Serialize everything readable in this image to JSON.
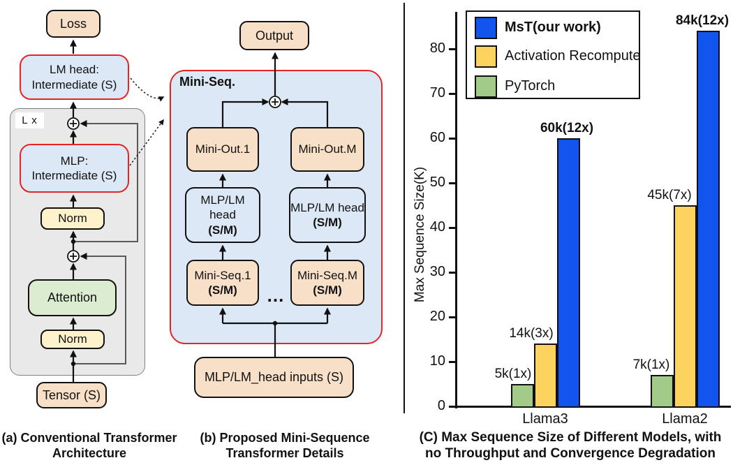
{
  "panel_a": {
    "caption": "(a) Conventional Transformer\nArchitecture",
    "loop_label": "L x",
    "nodes": {
      "loss": "Loss",
      "lm_head": "LM head:\nIntermediate (S)",
      "mlp": "MLP:\nIntermediate (S)",
      "norm_upper": "Norm",
      "attention": "Attention",
      "norm_lower": "Norm",
      "tensor": "Tensor (S)"
    }
  },
  "panel_b": {
    "caption": "(b) Proposed Mini-Sequence\nTransformer Details",
    "container_label": "Mini-Seq.",
    "nodes": {
      "output": "Output",
      "mini_out_1": "Mini-Out.1",
      "mini_out_m": "Mini-Out.M",
      "mlp_head_1": {
        "line1": "MLP/LM head",
        "line2": "(S/M)"
      },
      "mlp_head_m": {
        "line1": "MLP/LM head",
        "line2": "(S/M)"
      },
      "mini_seq_1": {
        "line1": "Mini-Seq.1",
        "line2": "(S/M)"
      },
      "mini_seq_m": {
        "line1": "Mini-Seq.M",
        "line2": "(S/M)"
      },
      "ellipsis": "...",
      "inputs": "MLP/LM_head inputs (S)"
    }
  },
  "chart_data": {
    "type": "bar",
    "title": "(C) Max Sequence Size of Different Models, with\nno Throughput and Convergence Degradation",
    "xlabel": "",
    "ylabel": "Max Sequence Size(K)",
    "categories": [
      "Llama3",
      "Llama2"
    ],
    "series": [
      {
        "name": "MsT(our work)",
        "color": "#1155ee",
        "values": [
          60,
          84
        ],
        "labels": [
          "60k(12x)",
          "84k(12x)"
        ],
        "bold_labels": true,
        "label_dx": [
          -2,
          -8
        ]
      },
      {
        "name": "Activation Recompute",
        "color": "#fbd35e",
        "values": [
          14,
          45
        ],
        "labels": [
          "14k(3x)",
          "45k(7x)"
        ],
        "bold_labels": false,
        "label_dx": [
          -20,
          -22
        ]
      },
      {
        "name": "PyTorch",
        "color": "#a2ca88",
        "values": [
          5,
          7
        ],
        "labels": [
          "5k(1x)",
          "7k(1x)"
        ],
        "bold_labels": false,
        "label_dx": [
          -13,
          -15
        ]
      }
    ],
    "ylim": [
      0,
      88
    ],
    "yticks": [
      0,
      10,
      20,
      30,
      40,
      50,
      60,
      70,
      80
    ],
    "legend_position": "upper left",
    "grid": false
  },
  "colors": {
    "peach": "#f8dfc8",
    "light_blue": "#dce8f5",
    "norm_yellow": "#fdf2cc",
    "attention_green": "#dcecd0",
    "container_gray": "#e9e9e9",
    "gray_border": "#808080",
    "red_border": "#e42525",
    "bar_blue": "#1155ee",
    "bar_yellow": "#fbd35e",
    "bar_green": "#a2ca88"
  }
}
